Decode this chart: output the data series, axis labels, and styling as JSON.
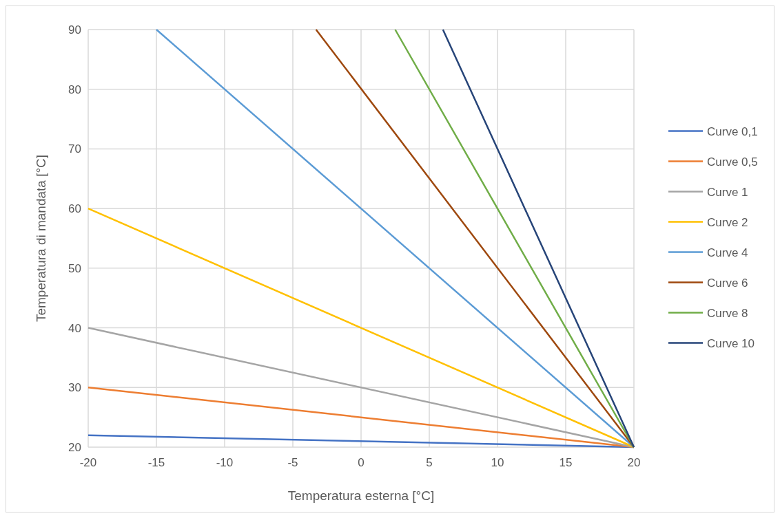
{
  "chart_data": {
    "type": "line",
    "xlabel": "Temperatura esterna [°C]",
    "ylabel": "Temperatura di mandata [°C]",
    "xlim": [
      -20,
      20
    ],
    "ylim": [
      20,
      90
    ],
    "xticks": [
      -20,
      -15,
      -10,
      -5,
      0,
      5,
      10,
      15,
      20
    ],
    "yticks": [
      20,
      30,
      40,
      50,
      60,
      70,
      80,
      90
    ],
    "grid": true,
    "legend": "right",
    "marker": "none",
    "line_style": "solid",
    "series": [
      {
        "name": "Curve 0,1",
        "color": "#4472c4",
        "x": [
          -20,
          20
        ],
        "values": [
          22,
          20
        ]
      },
      {
        "name": "Curve 0,5",
        "color": "#ed7d31",
        "x": [
          -20,
          20
        ],
        "values": [
          30,
          20
        ]
      },
      {
        "name": "Curve 1",
        "color": "#a5a5a5",
        "x": [
          -20,
          20
        ],
        "values": [
          40,
          20
        ]
      },
      {
        "name": "Curve 2",
        "color": "#ffc000",
        "x": [
          -20,
          20
        ],
        "values": [
          60,
          20
        ]
      },
      {
        "name": "Curve 4",
        "color": "#5b9bd5",
        "x": [
          -15,
          20
        ],
        "values": [
          90,
          20
        ]
      },
      {
        "name": "Curve 6",
        "color": "#9e480e",
        "x": [
          -3.3,
          20
        ],
        "values": [
          90,
          20
        ]
      },
      {
        "name": "Curve 8",
        "color": "#70ad47",
        "x": [
          2.5,
          20
        ],
        "values": [
          90,
          20
        ]
      },
      {
        "name": "Curve 10",
        "color": "#264478",
        "x": [
          6,
          20
        ],
        "values": [
          90,
          20
        ]
      }
    ]
  }
}
